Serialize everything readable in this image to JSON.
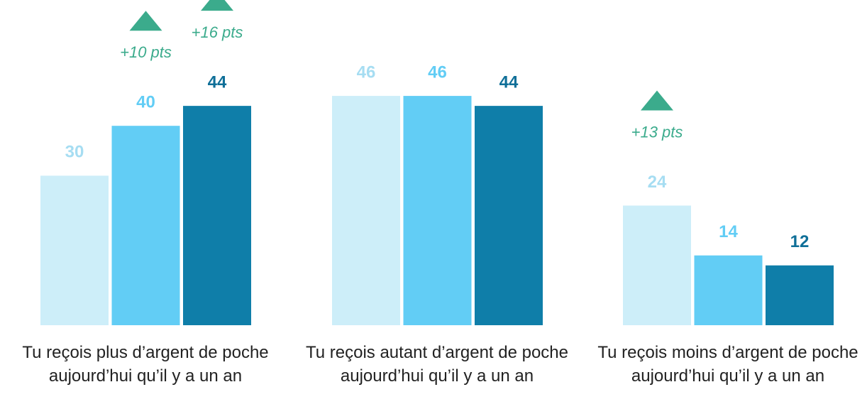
{
  "chart_data": {
    "type": "bar",
    "categories": [
      "Tu reçois plus d’argent de poche aujourd’hui qu’il y a un an",
      "Tu reçois autant d’argent de poche aujourd’hui qu’il y a un an",
      "Tu reçois moins d’argent de poche aujourd’hui qu’il y a un an"
    ],
    "series": [
      {
        "color": "#cdeef9",
        "label_color": "#a6ddf2",
        "values": [
          30,
          46,
          24
        ],
        "annotations": [
          null,
          null,
          "+13 pts"
        ]
      },
      {
        "color": "#62cdf5",
        "label_color": "#62cdf5",
        "values": [
          40,
          46,
          14
        ],
        "annotations": [
          "+10 pts",
          null,
          null
        ]
      },
      {
        "color": "#0f7ea9",
        "label_color": "#0f6f98",
        "values": [
          44,
          44,
          12
        ],
        "annotations": [
          "+16 pts",
          null,
          null
        ]
      }
    ],
    "annotation_color": "#3bab8c"
  }
}
